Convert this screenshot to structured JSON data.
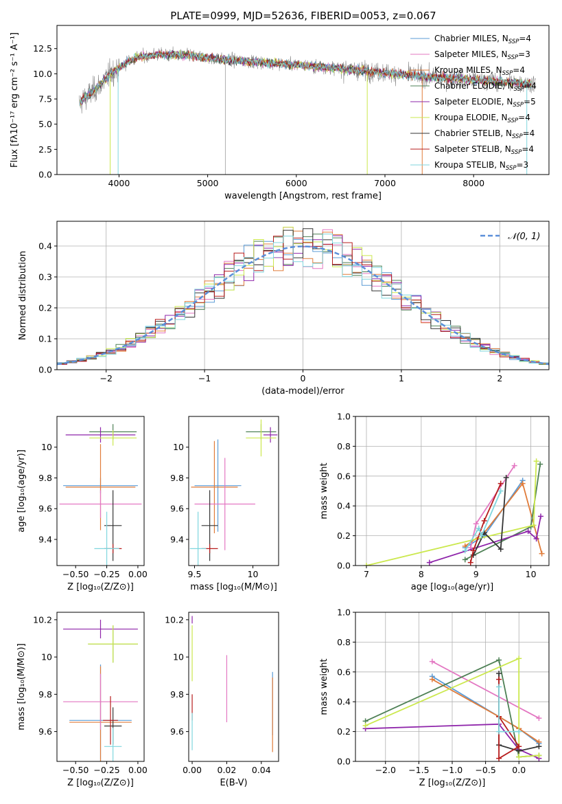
{
  "title": "PLATE=0999, MJD=52636, FIBERID=0053, z=0.067",
  "colors": {
    "Chabrier MILES": "#5b9bd5",
    "Salpeter MILES": "#e377c2",
    "Kroupa MILES": "#e07b39",
    "Chabrier ELODIE": "#4e8055",
    "Salpeter ELODIE": "#8e24aa",
    "Kroupa ELODIE": "#cbe84d",
    "Chabrier STELIB": "#333333",
    "Salpeter STELIB": "#b71c1c",
    "Kroupa STELIB": "#7fd6de",
    "data": "#808080",
    "gaussian": "#5b8fd9"
  },
  "chart_data": [
    {
      "type": "line",
      "id": "spectrum",
      "xlabel": "wavelength [Angstrom, rest frame]",
      "ylabel": "Flux [fλ10⁻¹⁷ erg cm⁻² s⁻¹ A⁻¹]",
      "xlim": [
        3300,
        8850
      ],
      "ylim": [
        0,
        14.8
      ],
      "xticks": [
        4000,
        5000,
        6000,
        7000,
        8000
      ],
      "yticks": [
        0.0,
        2.5,
        5.0,
        7.5,
        10.0,
        12.5
      ],
      "continuum_model": {
        "x": [
          3550,
          3600,
          3700,
          3800,
          3900,
          4000,
          4100,
          4200,
          4400,
          4600,
          4800,
          5000,
          5200,
          5500,
          6000,
          6500,
          7000,
          7500,
          8000,
          8500,
          8700
        ],
        "y": [
          7.0,
          7.5,
          8.2,
          9.0,
          10.0,
          10.6,
          11.2,
          11.6,
          11.9,
          11.9,
          11.8,
          11.6,
          11.4,
          11.2,
          10.9,
          10.5,
          10.1,
          9.7,
          9.4,
          9.1,
          9.0
        ]
      },
      "legend": [
        {
          "label": "Chabrier MILES",
          "n": "4"
        },
        {
          "label": "Salpeter MILES",
          "n": "3"
        },
        {
          "label": "Kroupa MILES",
          "n": "4"
        },
        {
          "label": "Chabrier ELODIE",
          "n": "4"
        },
        {
          "label": "Salpeter ELODIE",
          "n": "5"
        },
        {
          "label": "Kroupa ELODIE",
          "n": "4"
        },
        {
          "label": "Chabrier STELIB",
          "n": "4"
        },
        {
          "label": "Salpeter STELIB",
          "n": "4"
        },
        {
          "label": "Kroupa STELIB",
          "n": "3"
        }
      ],
      "legend_position": "top-right"
    },
    {
      "type": "step-histogram",
      "id": "residuals",
      "xlabel": "(data-model)/error",
      "ylabel": "Normed distribution",
      "xlim": [
        -2.5,
        2.5
      ],
      "ylim": [
        0,
        0.48
      ],
      "xticks": [
        -2,
        -1,
        0,
        1,
        2
      ],
      "yticks": [
        0.0,
        0.1,
        0.2,
        0.3,
        0.4
      ],
      "bin_width": 0.1,
      "gaussian_label": "𝒩(0, 1)",
      "legend_position": "top-right",
      "grid": true
    },
    {
      "type": "errorbar",
      "id": "age-vs-Z",
      "xlabel": "Z [log₁₀(Z/Z⊙)]",
      "ylabel": "age  [log₁₀(age/yr)]",
      "xlim": [
        -0.65,
        0.05
      ],
      "ylim": [
        9.23,
        10.2
      ],
      "xticks": [
        -0.5,
        -0.25,
        0.0
      ],
      "xticklabels": [
        "−0.50",
        "−0.25",
        "0.00"
      ],
      "yticks": [
        9.4,
        9.6,
        9.8,
        10.0
      ],
      "points": [
        {
          "model": "Chabrier MILES",
          "x": -0.3,
          "y": 9.75,
          "xerr": 0.3,
          "yerr": 0.05
        },
        {
          "model": "Kroupa MILES",
          "x": -0.3,
          "y": 9.74,
          "xerr": 0.28,
          "yerr": 0.28
        },
        {
          "model": "Salpeter MILES",
          "x": -0.3,
          "y": 9.63,
          "xerr": 0.33,
          "yerr": 0.09
        },
        {
          "model": "Chabrier ELODIE",
          "x": -0.2,
          "y": 10.1,
          "xerr": 0.19,
          "yerr": 0.05
        },
        {
          "model": "Salpeter ELODIE",
          "x": -0.3,
          "y": 10.08,
          "xerr": 0.28,
          "yerr": 0.05
        },
        {
          "model": "Kroupa ELODIE",
          "x": -0.2,
          "y": 10.06,
          "xerr": 0.19,
          "yerr": 0.05
        },
        {
          "model": "Chabrier STELIB",
          "x": -0.2,
          "y": 9.49,
          "xerr": 0.07,
          "yerr": 0.23
        },
        {
          "model": "Salpeter STELIB",
          "x": -0.2,
          "y": 9.34,
          "xerr": 0.07,
          "yerr": 0.03
        },
        {
          "model": "Kroupa STELIB",
          "x": -0.25,
          "y": 9.34,
          "xerr": 0.1,
          "yerr": 0.24
        }
      ]
    },
    {
      "type": "errorbar",
      "id": "age-vs-mass",
      "xlabel": "mass [log₁₀(M/M⊙)]",
      "ylabel": "",
      "xlim": [
        9.45,
        10.22
      ],
      "ylim": [
        9.23,
        10.2
      ],
      "xticks": [
        9.5,
        10.0
      ],
      "yticks": [
        9.4,
        9.6,
        9.8,
        10.0
      ],
      "points": [
        {
          "model": "Chabrier MILES",
          "x": 9.7,
          "y": 9.75,
          "xerr": 0.2,
          "yerr": 0.3
        },
        {
          "model": "Kroupa MILES",
          "x": 9.67,
          "y": 9.74,
          "xerr": 0.2,
          "yerr": 0.3
        },
        {
          "model": "Salpeter MILES",
          "x": 9.76,
          "y": 9.63,
          "xerr": 0.26,
          "yerr": 0.3
        },
        {
          "model": "Chabrier ELODIE",
          "x": 10.07,
          "y": 10.1,
          "xerr": 0.13,
          "yerr": 0.05
        },
        {
          "model": "Salpeter ELODIE",
          "x": 10.15,
          "y": 10.08,
          "xerr": 0.06,
          "yerr": 0.05
        },
        {
          "model": "Kroupa ELODIE",
          "x": 10.07,
          "y": 10.06,
          "xerr": 0.13,
          "yerr": 0.12
        },
        {
          "model": "Chabrier STELIB",
          "x": 9.63,
          "y": 9.49,
          "xerr": 0.07,
          "yerr": 0.23
        },
        {
          "model": "Salpeter STELIB",
          "x": 9.63,
          "y": 9.34,
          "xerr": 0.07,
          "yerr": 0.03
        },
        {
          "model": "Kroupa STELIB",
          "x": 9.53,
          "y": 9.34,
          "xerr": 0.07,
          "yerr": 0.24
        }
      ]
    },
    {
      "type": "line",
      "id": "mass-weight-vs-age",
      "xlabel": "age  [log₁₀(age/yr)]",
      "ylabel": "mass weight",
      "xlim": [
        6.8,
        10.33
      ],
      "ylim": [
        0,
        1.0
      ],
      "xticks": [
        7,
        8,
        9,
        10
      ],
      "yticks": [
        0.0,
        0.2,
        0.4,
        0.6,
        0.8,
        1.0
      ],
      "grid": true,
      "series": [
        {
          "model": "Chabrier MILES",
          "x": [
            8.8,
            9.15,
            9.85
          ],
          "y": [
            0.12,
            0.2,
            0.57
          ]
        },
        {
          "model": "Salpeter MILES",
          "x": [
            8.9,
            9.0,
            9.7
          ],
          "y": [
            0.12,
            0.28,
            0.67
          ]
        },
        {
          "model": "Kroupa MILES",
          "x": [
            8.8,
            9.15,
            9.85,
            10.2
          ],
          "y": [
            0.13,
            0.22,
            0.55,
            0.08
          ]
        },
        {
          "model": "Chabrier ELODIE",
          "x": [
            8.8,
            10.0,
            10.17
          ],
          "y": [
            0.04,
            0.26,
            0.68
          ]
        },
        {
          "model": "Salpeter ELODIE",
          "x": [
            8.15,
            9.95,
            10.1,
            10.18
          ],
          "y": [
            0.02,
            0.23,
            0.18,
            0.33
          ]
        },
        {
          "model": "Kroupa ELODIE",
          "x": [
            7.0,
            10.05,
            10.1
          ],
          "y": [
            0.0,
            0.27,
            0.7
          ]
        },
        {
          "model": "Chabrier STELIB",
          "x": [
            8.95,
            9.15,
            9.45,
            9.55
          ],
          "y": [
            0.07,
            0.22,
            0.11,
            0.59
          ]
        },
        {
          "model": "Salpeter STELIB",
          "x": [
            8.9,
            8.95,
            9.15,
            9.45
          ],
          "y": [
            0.02,
            0.1,
            0.3,
            0.55
          ]
        },
        {
          "model": "Kroupa STELIB",
          "x": [
            8.8,
            9.05,
            9.1,
            9.45
          ],
          "y": [
            0.1,
            0.25,
            0.2,
            0.5
          ]
        }
      ]
    },
    {
      "type": "errorbar",
      "id": "mass-vs-Z",
      "xlabel": "Z [log₁₀(Z/Z⊙)]",
      "ylabel": "mass [log₁₀(M/M⊙)]",
      "xlim": [
        -0.65,
        0.05
      ],
      "ylim": [
        9.44,
        10.24
      ],
      "xticks": [
        -0.5,
        -0.25,
        0.0
      ],
      "xticklabels": [
        "−0.50",
        "−0.25",
        "0.00"
      ],
      "yticks": [
        9.6,
        9.8,
        10.0,
        10.2
      ],
      "points": [
        {
          "model": "Chabrier MILES",
          "x": -0.3,
          "y": 9.66,
          "xerr": 0.25,
          "yerr": 0.3
        },
        {
          "model": "Kroupa MILES",
          "x": -0.3,
          "y": 9.65,
          "xerr": 0.25,
          "yerr": 0.3
        },
        {
          "model": "Salpeter MILES",
          "x": -0.3,
          "y": 9.76,
          "xerr": 0.3,
          "yerr": 0.15
        },
        {
          "model": "Chabrier ELODIE",
          "x": -0.2,
          "y": 10.07,
          "xerr": 0.2,
          "yerr": 0.1
        },
        {
          "model": "Salpeter ELODIE",
          "x": -0.3,
          "y": 10.15,
          "xerr": 0.3,
          "yerr": 0.05
        },
        {
          "model": "Kroupa ELODIE",
          "x": -0.2,
          "y": 10.07,
          "xerr": 0.2,
          "yerr": 0.1
        },
        {
          "model": "Chabrier STELIB",
          "x": -0.2,
          "y": 9.63,
          "xerr": 0.07,
          "yerr": 0.1
        },
        {
          "model": "Salpeter STELIB",
          "x": -0.22,
          "y": 9.66,
          "xerr": 0.06,
          "yerr": 0.13
        },
        {
          "model": "Kroupa STELIB",
          "x": -0.2,
          "y": 9.52,
          "xerr": 0.07,
          "yerr": 0.1
        }
      ]
    },
    {
      "type": "errorbar",
      "id": "mass-vs-EBV",
      "xlabel": "E(B-V)",
      "ylabel": "",
      "xlim": [
        -0.002,
        0.05
      ],
      "ylim": [
        9.44,
        10.24
      ],
      "xticks": [
        0.0,
        0.02,
        0.04
      ],
      "xticklabels": [
        "0.00",
        "0.02",
        "0.04"
      ],
      "yticks": [
        9.6,
        9.8,
        10.0,
        10.2
      ],
      "points": [
        {
          "model": "Chabrier MILES",
          "x": 0.0465,
          "y": 9.75,
          "xerr": 0,
          "yerr": 0.17
        },
        {
          "model": "Kroupa MILES",
          "x": 0.0465,
          "y": 9.69,
          "xerr": 0,
          "yerr": 0.2
        },
        {
          "model": "Salpeter MILES",
          "x": 0.02,
          "y": 9.83,
          "xerr": 0,
          "yerr": 0.18
        },
        {
          "model": "Kroupa ELODIE",
          "x": 0.0,
          "y": 10.02,
          "xerr": 0,
          "yerr": 0.15
        },
        {
          "model": "Salpeter ELODIE",
          "x": 0.0,
          "y": 10.2,
          "xerr": 0,
          "yerr": 0.02
        },
        {
          "model": "Salpeter STELIB",
          "x": 0.0,
          "y": 9.73,
          "xerr": 0,
          "yerr": 0.07
        },
        {
          "model": "Kroupa STELIB",
          "x": 0.0,
          "y": 9.6,
          "xerr": 0,
          "yerr": 0.1
        }
      ]
    },
    {
      "type": "line",
      "id": "mass-weight-vs-Z",
      "xlabel": "Z [log₁₀(Z/Z⊙)]",
      "ylabel": "mass weight",
      "xlim": [
        -2.45,
        0.45
      ],
      "ylim": [
        0,
        1.0
      ],
      "xticks": [
        -2.0,
        -1.5,
        -1.0,
        -0.5,
        0.0
      ],
      "xticklabels": [
        "−2.0",
        "−1.5",
        "−1.0",
        "−0.5",
        "0.0"
      ],
      "yticks": [
        0.0,
        0.2,
        0.4,
        0.6,
        0.8,
        1.0
      ],
      "grid": true,
      "series": [
        {
          "model": "Chabrier MILES",
          "x": [
            -1.3,
            -0.3,
            0.0,
            0.3
          ],
          "y": [
            0.57,
            0.3,
            0.22,
            0.12
          ]
        },
        {
          "model": "Salpeter MILES",
          "x": [
            -1.3,
            0.3
          ],
          "y": [
            0.67,
            0.29
          ]
        },
        {
          "model": "Kroupa MILES",
          "x": [
            -1.3,
            -0.3,
            0.0,
            0.3
          ],
          "y": [
            0.55,
            0.3,
            0.22,
            0.13
          ]
        },
        {
          "model": "Chabrier ELODIE",
          "x": [
            -2.3,
            -0.3,
            0.0,
            0.3
          ],
          "y": [
            0.27,
            0.68,
            0.03,
            0.04
          ]
        },
        {
          "model": "Salpeter ELODIE",
          "x": [
            -2.3,
            -0.3,
            0.0,
            0.3
          ],
          "y": [
            0.22,
            0.25,
            0.08,
            0.02
          ]
        },
        {
          "model": "Kroupa ELODIE",
          "x": [
            -2.3,
            0.0,
            0.0,
            0.3
          ],
          "y": [
            0.24,
            0.69,
            0.03,
            0.04
          ]
        },
        {
          "model": "Chabrier STELIB",
          "x": [
            -0.3,
            -0.3,
            0.0,
            0.3
          ],
          "y": [
            0.59,
            0.11,
            0.07,
            0.1
          ]
        },
        {
          "model": "Salpeter STELIB",
          "x": [
            -0.3,
            -0.3,
            0.0,
            -0.3
          ],
          "y": [
            0.55,
            0.02,
            0.1,
            0.3
          ]
        },
        {
          "model": "Kroupa STELIB",
          "x": [
            -0.3,
            -0.3,
            0.0
          ],
          "y": [
            0.5,
            0.2,
            0.2
          ]
        }
      ]
    }
  ]
}
